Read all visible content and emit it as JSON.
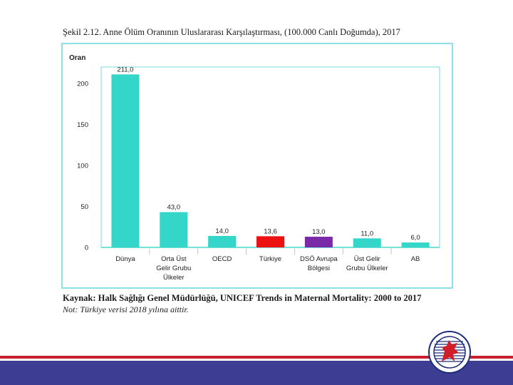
{
  "figure": {
    "title": "Şekil 2.12. Anne Ölüm Oranının Uluslararası Karşılaştırması, (100.000 Canlı Doğumda), 2017",
    "source": "Kaynak: Halk Sağlığı Genel Müdürlüğü, UNICEF Trends in Maternal Mortality: 2000 to 2017",
    "note": "Not: Türkiye verisi 2018 yılına aittir."
  },
  "chart_data": {
    "type": "bar",
    "title": "Şekil 2.12. Anne Ölüm Oranının Uluslararası Karşılaştırması, (100.000 Canlı Doğumda), 2017",
    "ylabel": "Oran",
    "xlabel": "",
    "ylim": [
      0,
      220
    ],
    "yticks": [
      0,
      50,
      100,
      150,
      200
    ],
    "grid": false,
    "categories": [
      [
        "Dünya"
      ],
      [
        "Orta Üst",
        "Gelir Grubu",
        "Ülkeler"
      ],
      [
        "OECD"
      ],
      [
        "Türkiye"
      ],
      [
        "DSÖ Avrupa",
        "Bölgesi"
      ],
      [
        "Üst Gelir",
        "Grubu Ülkeler"
      ],
      [
        "AB"
      ]
    ],
    "values": [
      211.0,
      43.0,
      14.0,
      13.6,
      13.0,
      11.0,
      6.0
    ],
    "value_labels": [
      "211,0",
      "43,0",
      "14,0",
      "13,6",
      "13,0",
      "11,0",
      "6,0"
    ],
    "colors": [
      "#33d6c8",
      "#33d6c8",
      "#33d6c8",
      "#ee1111",
      "#7a2aa6",
      "#33d6c8",
      "#33d6c8"
    ]
  },
  "footer": {
    "red_color": "#c8202e",
    "blue_color": "#3d3d94"
  },
  "logo": {
    "icon": "university-seal-icon"
  }
}
